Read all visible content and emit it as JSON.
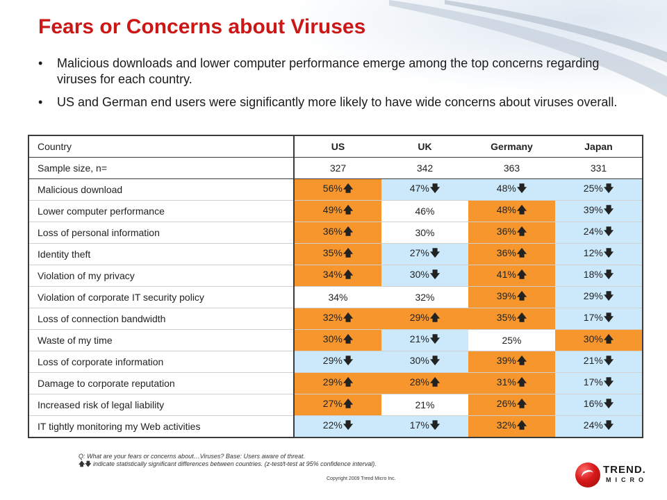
{
  "title": "Fears or Concerns about Viruses",
  "bullets": [
    "Malicious downloads and lower computer performance emerge among the top concerns regarding viruses for each country.",
    "US and German end users were significantly more likely to have wide concerns about viruses overall."
  ],
  "bullet_glyph": "•",
  "table": {
    "header": [
      "Country",
      "US",
      "UK",
      "Germany",
      "Japan"
    ],
    "sample": [
      "Sample size, n=",
      "327",
      "342",
      "363",
      "331"
    ],
    "rows": [
      {
        "label": "Malicious download",
        "cells": [
          {
            "v": "56%",
            "d": "up"
          },
          {
            "v": "47%",
            "d": "down"
          },
          {
            "v": "48%",
            "d": "down"
          },
          {
            "v": "25%",
            "d": "down"
          }
        ]
      },
      {
        "label": "Lower computer performance",
        "cells": [
          {
            "v": "49%",
            "d": "up"
          },
          {
            "v": "46%",
            "d": "none"
          },
          {
            "v": "48%",
            "d": "up"
          },
          {
            "v": "39%",
            "d": "down"
          }
        ]
      },
      {
        "label": "Loss of personal information",
        "cells": [
          {
            "v": "36%",
            "d": "up"
          },
          {
            "v": "30%",
            "d": "none"
          },
          {
            "v": "36%",
            "d": "up"
          },
          {
            "v": "24%",
            "d": "down"
          }
        ]
      },
      {
        "label": "Identity theft",
        "cells": [
          {
            "v": "35%",
            "d": "up"
          },
          {
            "v": "27%",
            "d": "down"
          },
          {
            "v": "36%",
            "d": "up"
          },
          {
            "v": "12%",
            "d": "down"
          }
        ]
      },
      {
        "label": "Violation of my privacy",
        "cells": [
          {
            "v": "34%",
            "d": "up"
          },
          {
            "v": "30%",
            "d": "down"
          },
          {
            "v": "41%",
            "d": "up"
          },
          {
            "v": "18%",
            "d": "down"
          }
        ]
      },
      {
        "label": "Violation of corporate IT security policy",
        "cells": [
          {
            "v": "34%",
            "d": "none"
          },
          {
            "v": "32%",
            "d": "none"
          },
          {
            "v": "39%",
            "d": "up"
          },
          {
            "v": "29%",
            "d": "down"
          }
        ]
      },
      {
        "label": "Loss of connection bandwidth",
        "cells": [
          {
            "v": "32%",
            "d": "up"
          },
          {
            "v": "29%",
            "d": "up"
          },
          {
            "v": "35%",
            "d": "up"
          },
          {
            "v": "17%",
            "d": "down"
          }
        ]
      },
      {
        "label": "Waste of my time",
        "cells": [
          {
            "v": "30%",
            "d": "up"
          },
          {
            "v": "21%",
            "d": "down"
          },
          {
            "v": "25%",
            "d": "none"
          },
          {
            "v": "30%",
            "d": "up"
          }
        ]
      },
      {
        "label": "Loss of corporate information",
        "cells": [
          {
            "v": "29%",
            "d": "down"
          },
          {
            "v": "30%",
            "d": "down"
          },
          {
            "v": "39%",
            "d": "up"
          },
          {
            "v": "21%",
            "d": "down"
          }
        ]
      },
      {
        "label": "Damage to corporate reputation",
        "cells": [
          {
            "v": "29%",
            "d": "up"
          },
          {
            "v": "28%",
            "d": "up"
          },
          {
            "v": "31%",
            "d": "up"
          },
          {
            "v": "17%",
            "d": "down"
          }
        ]
      },
      {
        "label": "Increased risk of legal liability",
        "cells": [
          {
            "v": "27%",
            "d": "up"
          },
          {
            "v": "21%",
            "d": "none"
          },
          {
            "v": "26%",
            "d": "up"
          },
          {
            "v": "16%",
            "d": "down"
          }
        ]
      },
      {
        "label": "IT tightly monitoring my Web activities",
        "cells": [
          {
            "v": "22%",
            "d": "down"
          },
          {
            "v": "17%",
            "d": "down"
          },
          {
            "v": "32%",
            "d": "up"
          },
          {
            "v": "24%",
            "d": "down"
          }
        ]
      }
    ]
  },
  "arrows": {
    "up": "🡅",
    "down": "🡇"
  },
  "colors": {
    "up": "#f7962c",
    "down": "#cce9fb",
    "none": "#ffffff",
    "title": "#cc1717"
  },
  "footnote": {
    "line1": "Q: What are your fears or concerns about…Viruses?  Base: Users aware of threat.",
    "arrows": "🡅🡇",
    "line2": " indicate statistically significant differences between countries. (z-test/t-test at 95% confidence interval)."
  },
  "copyright": "Copyright 2009   Trend Micro Inc.",
  "logo": {
    "line1": "TREND.",
    "line2": "MICRO"
  }
}
